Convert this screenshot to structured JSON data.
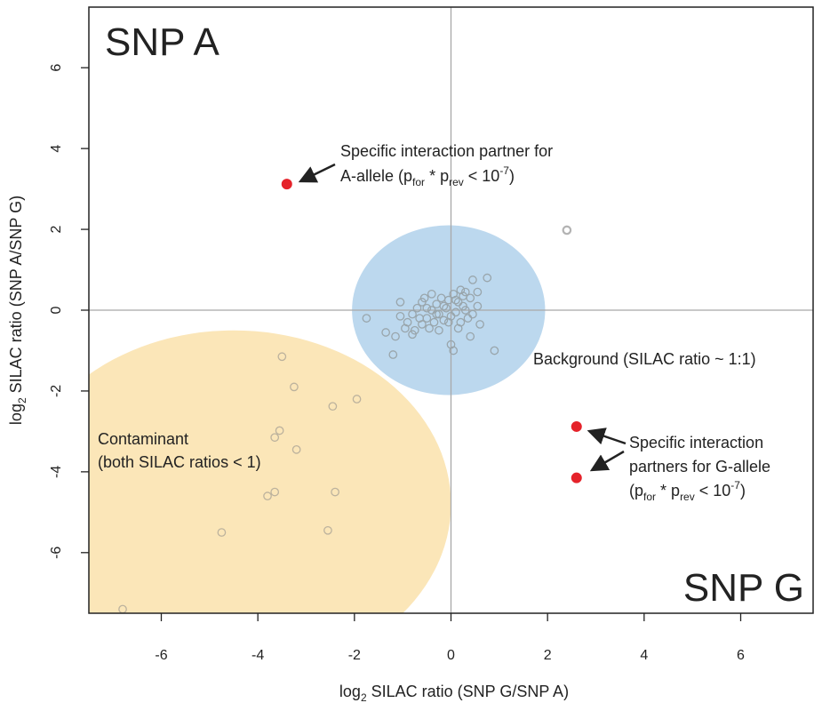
{
  "chart_data": {
    "type": "scatter",
    "xlabel": {
      "prefix": "log",
      "sub": "2",
      "text": " SILAC ratio (SNP G/SNP A)"
    },
    "ylabel": {
      "prefix": "log",
      "sub": "2",
      "text": " SILAC ratio (SNP A/SNP G)"
    },
    "xlim": [
      -7.5,
      7.5
    ],
    "ylim": [
      -7.5,
      7.5
    ],
    "x_ticks": [
      -6,
      -4,
      -2,
      0,
      2,
      4,
      6
    ],
    "y_ticks": [
      -6,
      -4,
      -2,
      0,
      2,
      4,
      6
    ],
    "grid": false,
    "corner_labels": {
      "top_left": "SNP A",
      "bottom_right": "SNP G"
    },
    "colors": {
      "background_region": "#bcd8ee",
      "contaminant_region": "#fbe6b8",
      "gray_point": "#99a5ab",
      "tan_point": "#bcb29d",
      "significant_point": "#e5232a",
      "zero_line": "#a8a8a8"
    },
    "regions": [
      {
        "name": "background",
        "cx": -0.05,
        "cy": 0.0,
        "rx": 2.0,
        "ry": 2.1,
        "color": "#bcd8ee"
      },
      {
        "name": "contaminant",
        "cx": -4.5,
        "cy": -4.8,
        "rx": 4.5,
        "ry": 4.3,
        "color": "#fbe6b8"
      }
    ],
    "background_points": [
      [
        -1.75,
        -0.2
      ],
      [
        -1.35,
        -0.55
      ],
      [
        -1.2,
        -1.1
      ],
      [
        -1.15,
        -0.65
      ],
      [
        -1.05,
        -0.15
      ],
      [
        -1.05,
        0.2
      ],
      [
        -0.9,
        -0.3
      ],
      [
        -0.8,
        -0.6
      ],
      [
        -0.8,
        -0.1
      ],
      [
        -0.75,
        -0.5
      ],
      [
        -0.7,
        0.05
      ],
      [
        -0.6,
        -0.35
      ],
      [
        -0.55,
        0.3
      ],
      [
        -0.5,
        -0.2
      ],
      [
        -0.45,
        -0.45
      ],
      [
        -0.4,
        0.0
      ],
      [
        -0.35,
        -0.3
      ],
      [
        -0.3,
        0.15
      ],
      [
        -0.25,
        -0.1
      ],
      [
        -0.2,
        0.3
      ],
      [
        -0.15,
        -0.25
      ],
      [
        -0.1,
        0.05
      ],
      [
        -0.05,
        0.25
      ],
      [
        0.0,
        -0.15
      ],
      [
        0.05,
        0.4
      ],
      [
        0.1,
        -0.05
      ],
      [
        0.15,
        0.2
      ],
      [
        0.2,
        -0.3
      ],
      [
        0.25,
        0.35
      ],
      [
        0.3,
        0.0
      ],
      [
        0.35,
        -0.2
      ],
      [
        0.4,
        0.3
      ],
      [
        0.45,
        -0.1
      ],
      [
        0.55,
        0.1
      ],
      [
        0.4,
        -0.65
      ],
      [
        0.75,
        0.8
      ],
      [
        0.45,
        0.75
      ],
      [
        0.9,
        -1.0
      ],
      [
        0.0,
        -0.85
      ],
      [
        0.05,
        -1.0
      ],
      [
        -0.4,
        0.4
      ],
      [
        -0.6,
        0.2
      ],
      [
        0.6,
        -0.35
      ],
      [
        0.2,
        0.5
      ],
      [
        -0.25,
        -0.5
      ],
      [
        -0.15,
        0.1
      ],
      [
        0.15,
        -0.45
      ],
      [
        -0.3,
        -0.1
      ],
      [
        0.1,
        0.25
      ],
      [
        -0.05,
        -0.3
      ],
      [
        0.25,
        0.1
      ],
      [
        -0.5,
        0.05
      ],
      [
        0.3,
        0.45
      ],
      [
        0.55,
        0.45
      ],
      [
        -0.65,
        -0.2
      ],
      [
        -0.95,
        -0.45
      ]
    ],
    "outlier_points": [
      [
        2.4,
        1.98
      ]
    ],
    "contaminant_points": [
      [
        -3.5,
        -1.15
      ],
      [
        -3.25,
        -1.9
      ],
      [
        -1.95,
        -2.2
      ],
      [
        -2.45,
        -2.38
      ],
      [
        -3.55,
        -2.98
      ],
      [
        -3.65,
        -3.15
      ],
      [
        -3.2,
        -3.45
      ],
      [
        -3.65,
        -4.5
      ],
      [
        -3.8,
        -4.6
      ],
      [
        -2.4,
        -4.5
      ],
      [
        -4.75,
        -5.5
      ],
      [
        -2.55,
        -5.45
      ],
      [
        -6.8,
        -7.4
      ]
    ],
    "significant_points": [
      [
        -3.4,
        3.12
      ],
      [
        2.6,
        -2.88
      ],
      [
        2.6,
        -4.15
      ]
    ],
    "annotations": [
      {
        "line1": "Specific interaction partner for",
        "line2_parts": [
          "A-allele (p",
          "for",
          " * p",
          "rev",
          " < 10",
          "-7",
          ")"
        ]
      },
      {
        "text": "Background (SILAC ratio ~ 1:1)"
      },
      {
        "line1": "Contaminant",
        "line2": "(both SILAC ratios < 1)"
      },
      {
        "line1": "Specific interaction",
        "line2": "partners for  G-allele",
        "line3_parts": [
          "(p",
          "for",
          " * p",
          "rev",
          " < 10",
          "-7",
          ")"
        ]
      }
    ]
  }
}
